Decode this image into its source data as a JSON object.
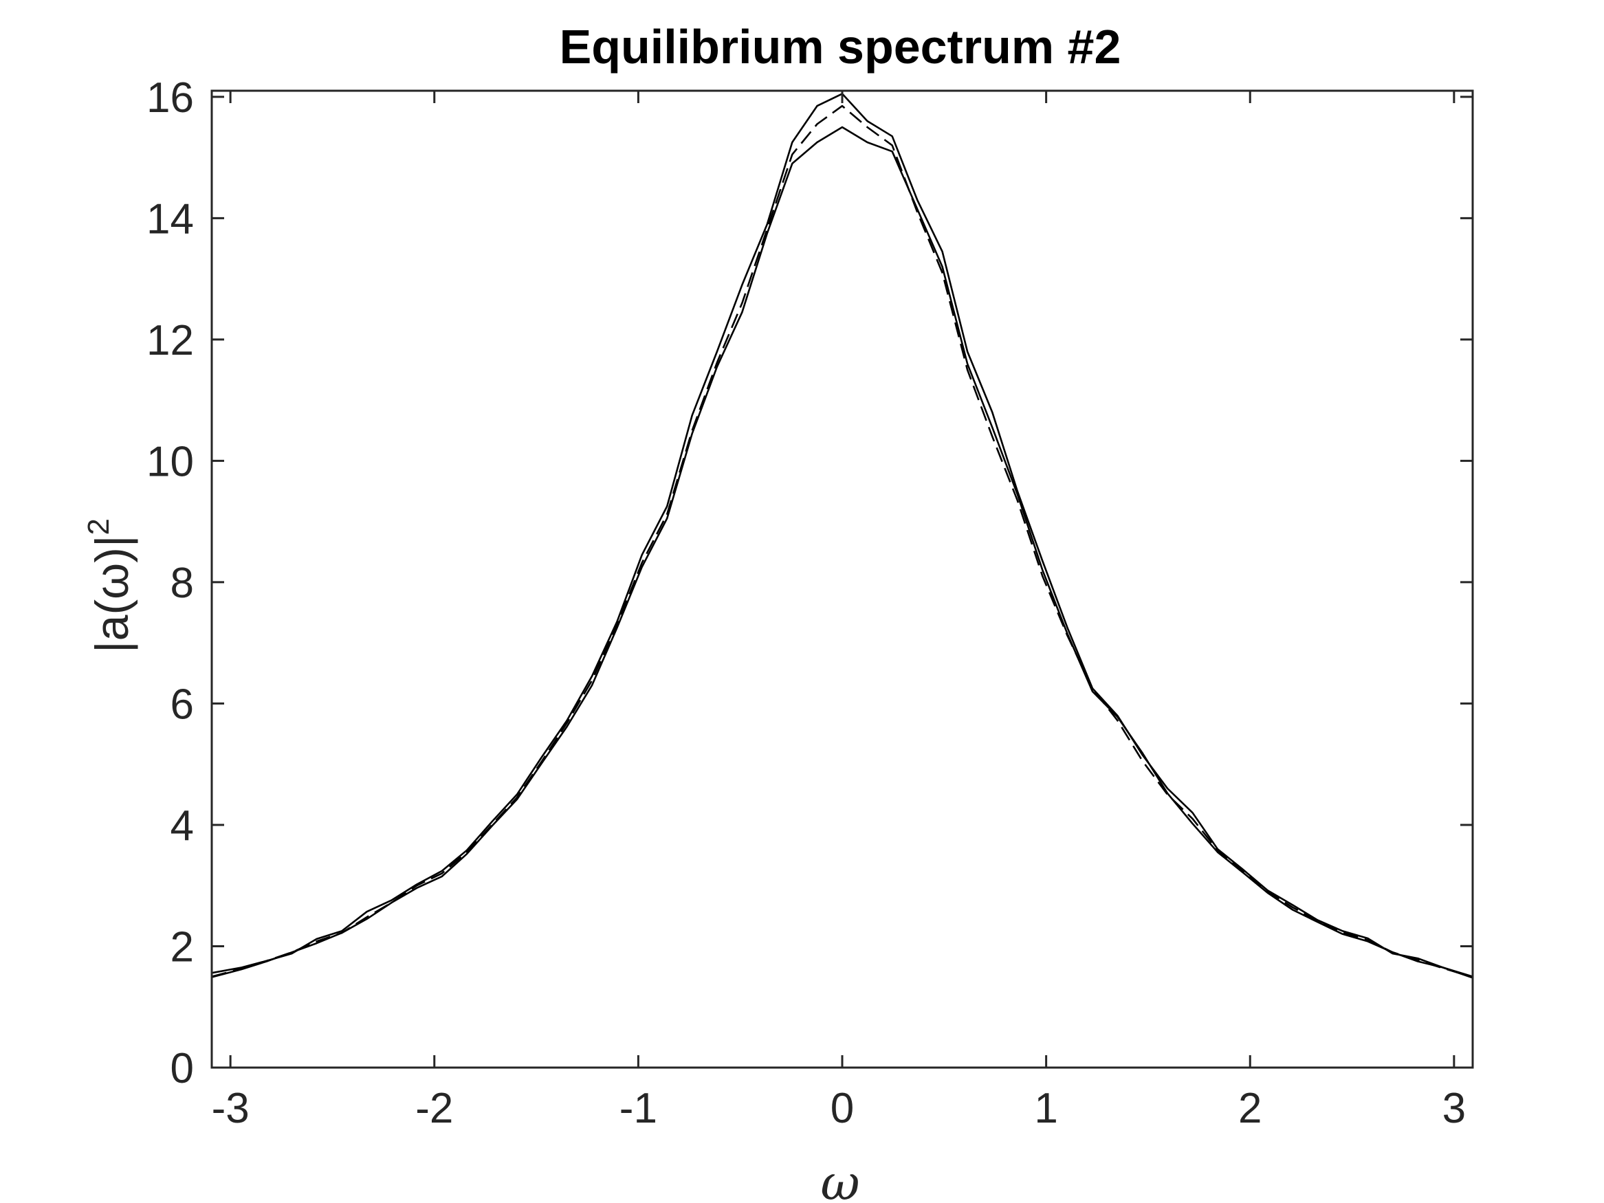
{
  "chart_data": {
    "type": "line",
    "title": "Equilibrium spectrum #2",
    "xlabel": "ω",
    "ylabel_base": "|a(ω)|",
    "ylabel_exp": "2",
    "xlim": [
      -3.0915,
      3.0915
    ],
    "ylim": [
      0,
      16.1
    ],
    "x_ticks": [
      -3,
      -2,
      -1,
      0,
      1,
      2,
      3
    ],
    "x_tick_labels": [
      "-3",
      "-2",
      "-1",
      "0",
      "1",
      "2",
      "3"
    ],
    "y_ticks": [
      0,
      2,
      4,
      6,
      8,
      10,
      12,
      14,
      16
    ],
    "y_tick_labels": [
      "0",
      "2",
      "4",
      "6",
      "8",
      "10",
      "12",
      "14",
      "16"
    ],
    "grid": false,
    "line_color": "#000000",
    "x": [
      -3.0915,
      -2.945,
      -2.822,
      -2.699,
      -2.577,
      -2.454,
      -2.331,
      -2.209,
      -2.086,
      -1.963,
      -1.841,
      -1.718,
      -1.595,
      -1.473,
      -1.35,
      -1.227,
      -1.104,
      -0.982,
      -0.859,
      -0.736,
      -0.614,
      -0.491,
      -0.368,
      -0.245,
      -0.123,
      0,
      0.123,
      0.245,
      0.368,
      0.491,
      0.614,
      0.736,
      0.859,
      0.982,
      1.104,
      1.227,
      1.35,
      1.473,
      1.595,
      1.718,
      1.841,
      1.963,
      2.086,
      2.209,
      2.331,
      2.454,
      2.577,
      2.699,
      2.822,
      2.945,
      3.0915
    ],
    "series": [
      {
        "style": "solid",
        "values": [
          1.56,
          1.65,
          1.76,
          1.88,
          2.12,
          2.25,
          2.57,
          2.76,
          3.02,
          3.24,
          3.58,
          4.05,
          4.5,
          5.12,
          5.72,
          6.45,
          7.35,
          8.45,
          9.25,
          10.75,
          11.8,
          12.9,
          13.9,
          15.25,
          15.85,
          16.05,
          15.6,
          15.35,
          14.3,
          13.45,
          11.8,
          10.8,
          9.5,
          8.35,
          7.25,
          6.25,
          5.8,
          5.15,
          4.6,
          4.2,
          3.6,
          3.27,
          2.92,
          2.68,
          2.43,
          2.25,
          2.13,
          1.88,
          1.8,
          1.65,
          1.5
        ]
      },
      {
        "style": "solid",
        "values": [
          1.49,
          1.62,
          1.75,
          1.9,
          2.05,
          2.22,
          2.45,
          2.72,
          2.96,
          3.15,
          3.52,
          3.98,
          4.42,
          5.02,
          5.62,
          6.3,
          7.25,
          8.25,
          9.05,
          10.45,
          11.55,
          12.45,
          13.75,
          14.9,
          15.25,
          15.5,
          15.25,
          15.1,
          14.15,
          13.2,
          11.6,
          10.55,
          9.45,
          8.2,
          7.15,
          6.2,
          5.78,
          5.18,
          4.52,
          4.02,
          3.55,
          3.22,
          2.88,
          2.6,
          2.4,
          2.2,
          2.08,
          1.9,
          1.75,
          1.65,
          1.48
        ]
      },
      {
        "style": "dashed",
        "values": [
          1.5,
          1.63,
          1.76,
          1.9,
          2.08,
          2.22,
          2.48,
          2.72,
          3.0,
          3.2,
          3.55,
          4.0,
          4.45,
          5.05,
          5.68,
          6.38,
          7.3,
          8.32,
          9.12,
          10.5,
          11.62,
          12.6,
          13.82,
          15.05,
          15.55,
          15.85,
          15.5,
          15.2,
          14.1,
          13.1,
          11.5,
          10.4,
          9.35,
          8.1,
          7.12,
          6.25,
          5.72,
          5.05,
          4.5,
          4.1,
          3.58,
          3.25,
          2.9,
          2.64,
          2.42,
          2.23,
          2.1,
          1.9,
          1.77,
          1.64,
          1.49
        ]
      }
    ]
  }
}
